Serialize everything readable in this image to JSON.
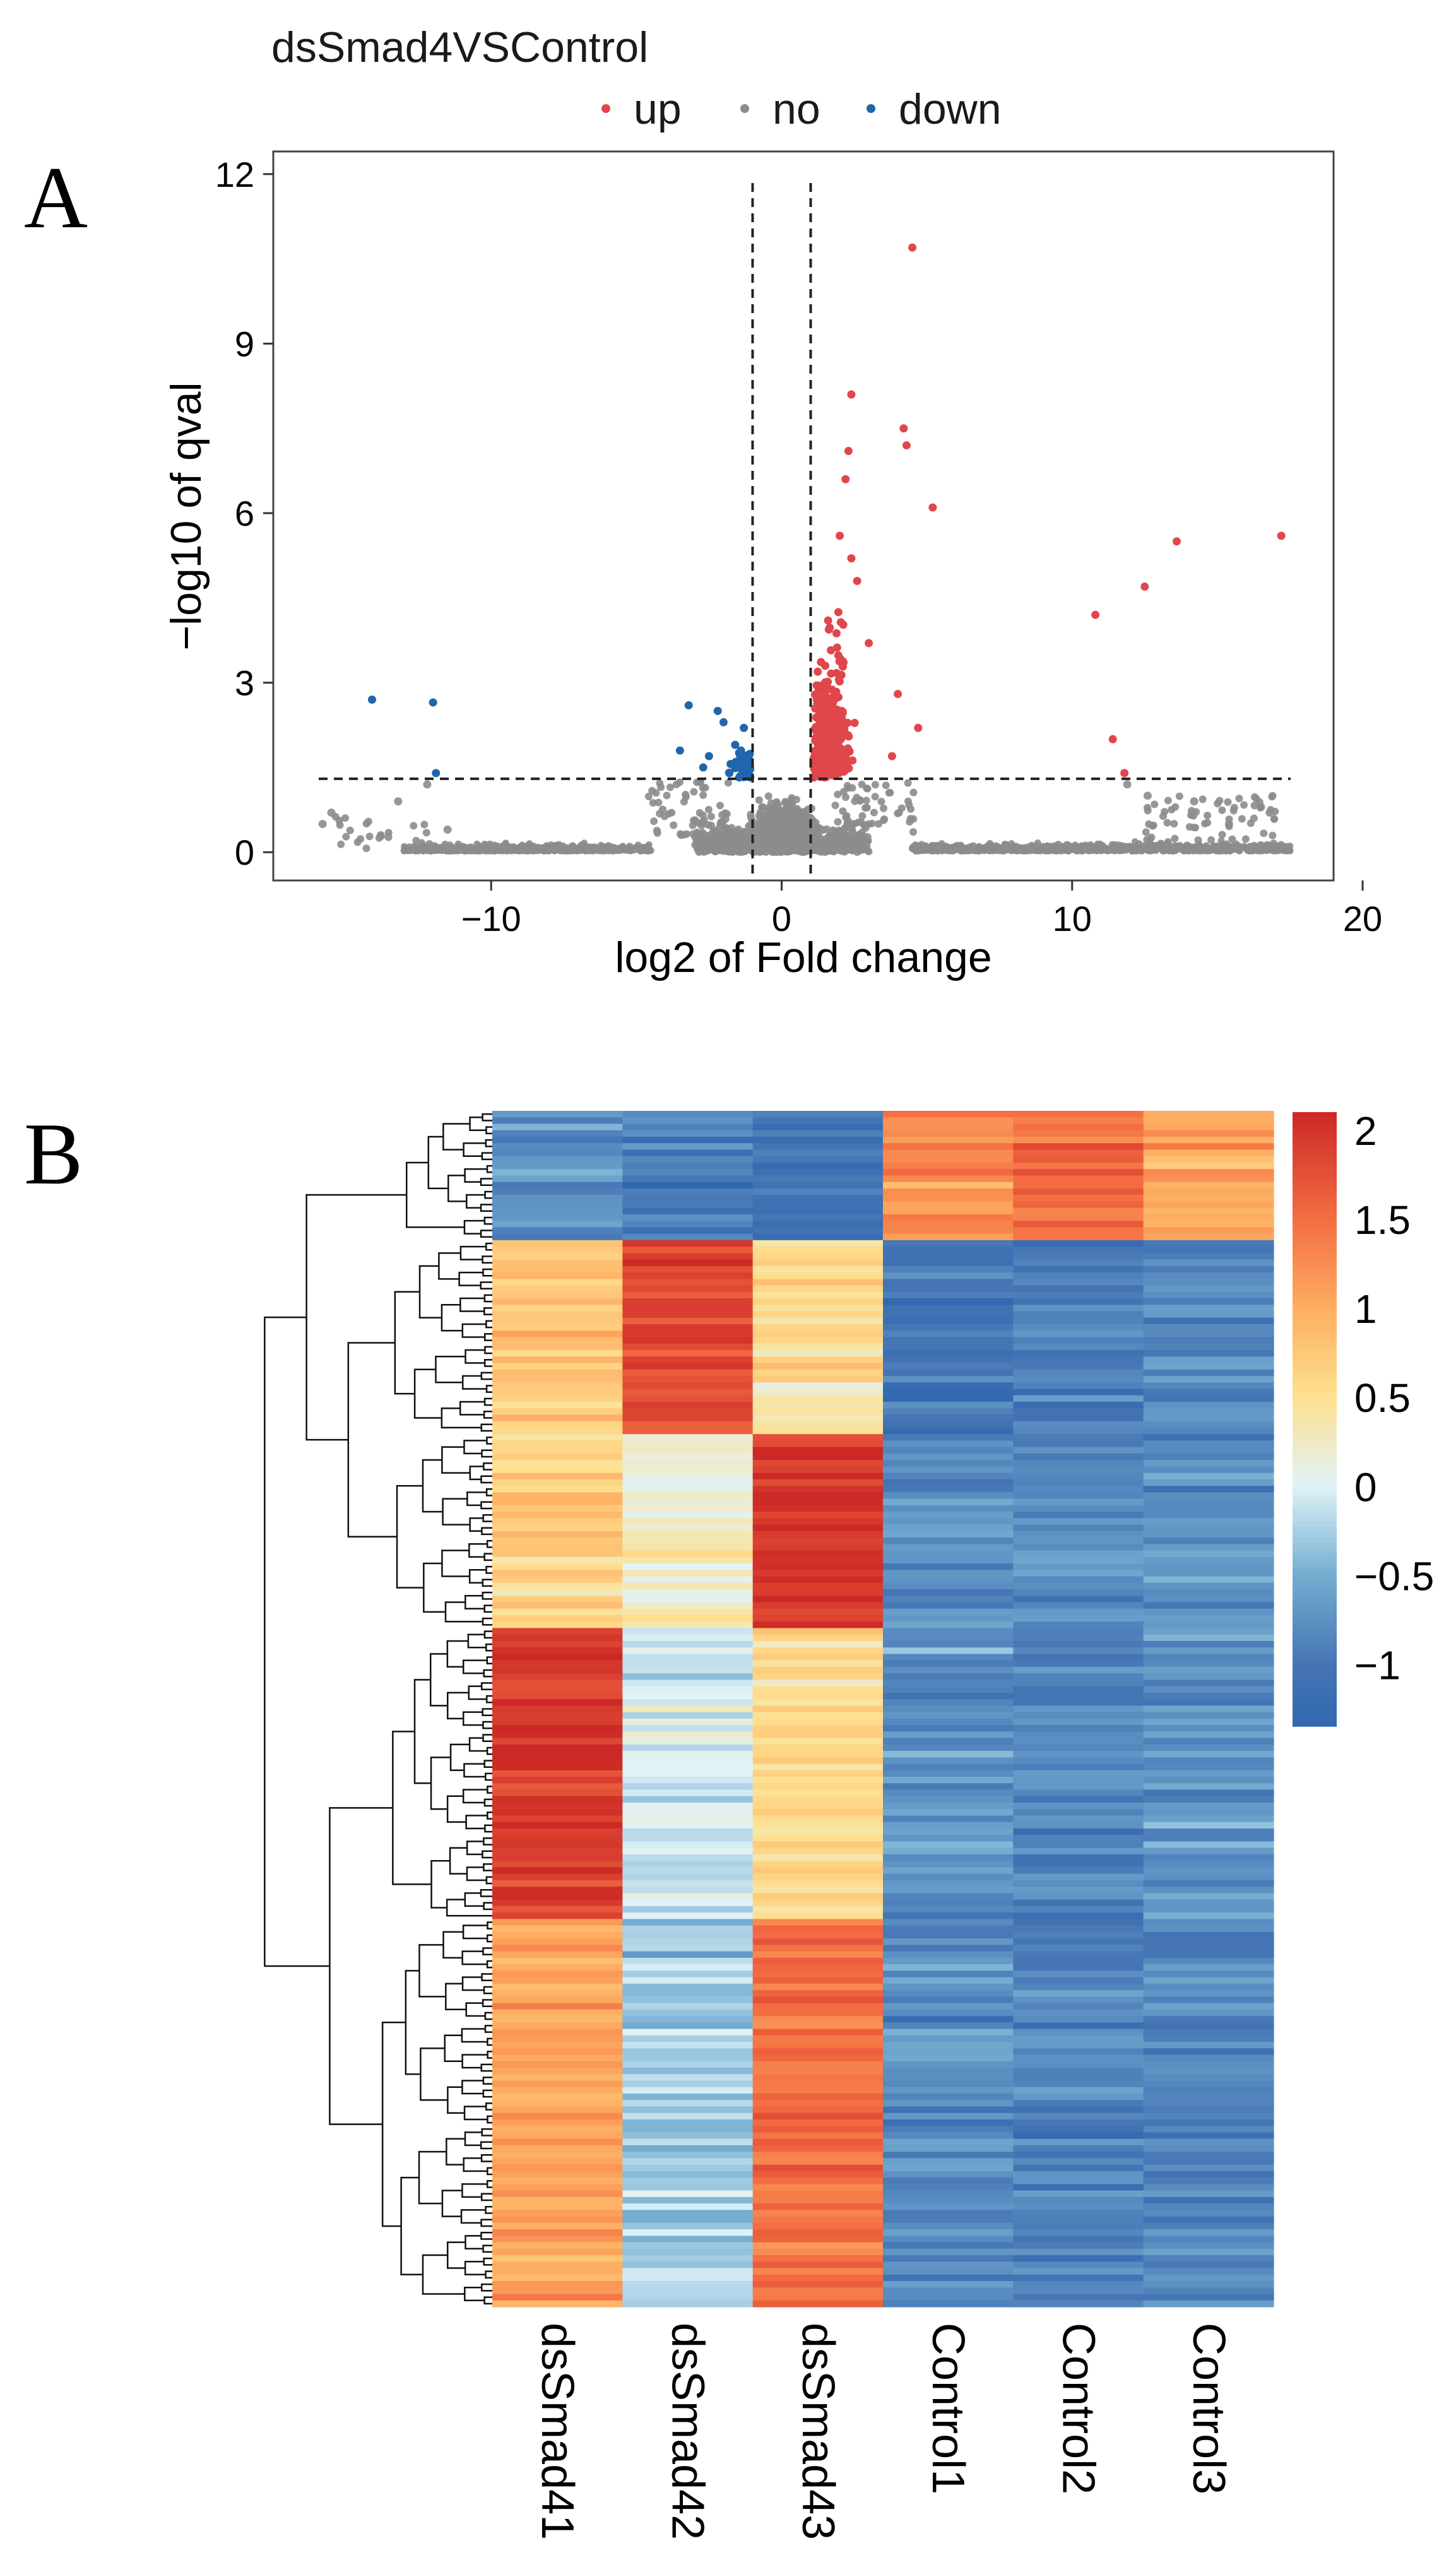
{
  "panel_labels": {
    "a": "A",
    "b": "B"
  },
  "colors": {
    "up": "#e0474c",
    "no": "#8c8c8c",
    "down": "#2166ac",
    "axis": "#333333",
    "dend": "#111111"
  },
  "chart_data": [
    {
      "type": "scatter",
      "title": "dsSmad4VSControl",
      "xlabel": "log2 of Fold change",
      "ylabel": "−log10 of qval",
      "xlim": [
        -17.5,
        19
      ],
      "ylim": [
        -0.5,
        12.4
      ],
      "xticks": [
        -10,
        0,
        10,
        20
      ],
      "xtick_labels": [
        "−10",
        "0",
        "10",
        "20"
      ],
      "yticks": [
        0,
        3,
        6,
        9,
        12
      ],
      "ytick_labels": [
        "0",
        "3",
        "6",
        "9",
        "12"
      ],
      "thresholds": {
        "vlines": [
          -1,
          1
        ],
        "hline": 1.3
      },
      "legend": {
        "position": "top",
        "labels": [
          "up",
          "no",
          "down"
        ]
      },
      "series": [
        {
          "name": "up",
          "points": [
            [
              4.5,
              10.7
            ],
            [
              2.4,
              8.1
            ],
            [
              4.2,
              7.5
            ],
            [
              2.3,
              7.1
            ],
            [
              4.3,
              7.2
            ],
            [
              2.2,
              6.6
            ],
            [
              5.2,
              6.1
            ],
            [
              13.6,
              5.5
            ],
            [
              17.2,
              5.6
            ],
            [
              12.5,
              4.7
            ],
            [
              10.8,
              4.2
            ],
            [
              11.4,
              2.0
            ],
            [
              11.8,
              1.4
            ],
            [
              4.0,
              2.8
            ],
            [
              4.7,
              2.2
            ],
            [
              3.8,
              1.7
            ],
            [
              3.0,
              3.7
            ],
            [
              2.4,
              5.2
            ],
            [
              2.0,
              5.6
            ],
            [
              2.6,
              4.8
            ],
            [
              1.6,
              4.1
            ],
            [
              1.5,
              3.3
            ],
            [
              1.3,
              2.7
            ],
            [
              1.2,
              2.0
            ],
            [
              1.1,
              1.6
            ],
            [
              1.8,
              1.5
            ]
          ]
        },
        {
          "name": "down",
          "points": [
            [
              -14.1,
              2.7
            ],
            [
              -12.0,
              2.65
            ],
            [
              -11.9,
              1.4
            ],
            [
              -3.2,
              2.6
            ],
            [
              -2.2,
              2.5
            ],
            [
              -2.0,
              2.3
            ],
            [
              -3.5,
              1.8
            ],
            [
              -2.7,
              1.5
            ],
            [
              -1.6,
              1.9
            ],
            [
              -1.3,
              2.2
            ],
            [
              -1.1,
              1.6
            ],
            [
              -1.8,
              1.4
            ],
            [
              -2.5,
              1.7
            ],
            [
              -1.4,
              1.8
            ],
            [
              -1.2,
              1.5
            ]
          ]
        },
        {
          "name": "no",
          "points": [
            [
              -15.8,
              0.5
            ],
            [
              -15.5,
              0.7
            ],
            [
              -13.2,
              0.9
            ],
            [
              -12.2,
              1.2
            ],
            [
              -11.5,
              0.4
            ],
            [
              -13.8,
              0.3
            ],
            [
              16.5,
              0.8
            ],
            [
              16.8,
              0.7
            ],
            [
              15.4,
              0.5
            ],
            [
              14.2,
              0.9
            ],
            [
              12.6,
              1.0
            ],
            [
              11.9,
              1.2
            ]
          ]
        }
      ]
    },
    {
      "type": "heatmap",
      "columns": [
        "dsSmad41",
        "dsSmad42",
        "dsSmad43",
        "Control1",
        "Control2",
        "Control3"
      ],
      "colorbar": {
        "min": -1.35,
        "max": 2.1,
        "ticks": [
          2,
          1.5,
          1,
          0.5,
          0,
          -0.5,
          -1
        ],
        "tick_labels": [
          "2",
          "1.5",
          "1",
          "0.5",
          "0",
          "−0.5",
          "−1"
        ]
      },
      "clusters": [
        {
          "rows": 20,
          "means": [
            -0.75,
            -0.95,
            -1.05,
            1.3,
            1.55,
            1.05
          ]
        },
        {
          "rows": 30,
          "means": [
            0.8,
            1.85,
            0.55,
            -1.0,
            -0.9,
            -0.8
          ]
        },
        {
          "rows": 30,
          "means": [
            0.65,
            0.2,
            1.95,
            -0.8,
            -0.8,
            -0.75
          ]
        },
        {
          "rows": 45,
          "means": [
            1.95,
            -0.1,
            0.55,
            -0.75,
            -0.85,
            -0.7
          ]
        },
        {
          "rows": 60,
          "means": [
            1.1,
            -0.25,
            1.5,
            -0.75,
            -0.85,
            -0.8
          ]
        }
      ]
    }
  ]
}
